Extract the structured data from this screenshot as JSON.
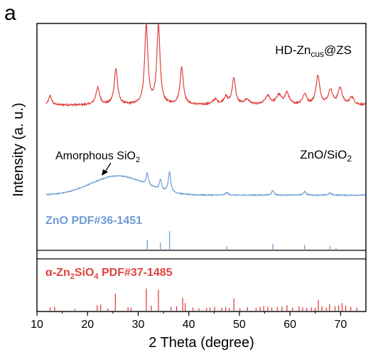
{
  "panel_label": "a",
  "chart_data": {
    "type": "line",
    "xlabel": "2 Theta (degree)",
    "ylabel": "Intensity (a. u.)",
    "xlim": [
      10,
      75
    ],
    "xticks": [
      10,
      20,
      30,
      40,
      50,
      60,
      70
    ],
    "grid": false,
    "series": [
      {
        "name": "HD-Zn_cus@ZS",
        "label_main": "HD-Zn",
        "label_sub": "cus",
        "label_tail": "@ZS",
        "color": "#e0423f",
        "baseline": 0.1,
        "noise": 0.035,
        "peaks": [
          [
            12.6,
            0.18,
            0.35
          ],
          [
            22.0,
            0.33,
            0.45
          ],
          [
            25.6,
            0.7,
            0.4
          ],
          [
            31.6,
            1.55,
            0.38
          ],
          [
            34.0,
            1.53,
            0.38
          ],
          [
            38.6,
            0.72,
            0.4
          ],
          [
            45.2,
            0.1,
            0.6
          ],
          [
            47.3,
            0.14,
            0.5
          ],
          [
            48.9,
            0.52,
            0.4
          ],
          [
            51.5,
            0.1,
            0.6
          ],
          [
            55.6,
            0.17,
            0.6
          ],
          [
            57.8,
            0.18,
            0.6
          ],
          [
            59.4,
            0.22,
            0.5
          ],
          [
            62.9,
            0.2,
            0.5
          ],
          [
            65.5,
            0.56,
            0.45
          ],
          [
            68.0,
            0.28,
            0.5
          ],
          [
            69.9,
            0.32,
            0.5
          ],
          [
            72.2,
            0.15,
            0.5
          ]
        ]
      },
      {
        "name": "ZnO/SiO2",
        "label_main": "ZnO/SiO",
        "label_sub": "2",
        "color": "#6f9bd6",
        "baseline": 0.05,
        "hump": {
          "center": 26,
          "width": 7.5,
          "height": 0.52
        },
        "noise": 0.025,
        "peaks": [
          [
            31.8,
            0.32,
            0.25
          ],
          [
            34.4,
            0.27,
            0.25
          ],
          [
            36.2,
            0.55,
            0.28
          ],
          [
            47.5,
            0.07,
            0.3
          ],
          [
            56.6,
            0.12,
            0.3
          ],
          [
            62.9,
            0.1,
            0.3
          ],
          [
            67.9,
            0.06,
            0.3
          ]
        ]
      }
    ],
    "annotations": [
      {
        "text_main": "Amorphous SiO",
        "text_sub": "2",
        "target_x": 26
      }
    ],
    "references": [
      {
        "name": "ZnO PDF#36-1451",
        "label_prefix": "ZnO PDF#36-1451",
        "color": "#6f9bd6",
        "lines": [
          [
            31.8,
            0.55
          ],
          [
            34.4,
            0.4
          ],
          [
            36.2,
            1.0
          ],
          [
            47.5,
            0.22
          ],
          [
            56.6,
            0.32
          ],
          [
            62.9,
            0.28
          ],
          [
            66.4,
            0.05
          ],
          [
            67.9,
            0.23
          ],
          [
            69.1,
            0.12
          ],
          [
            72.6,
            0.03
          ]
        ]
      },
      {
        "name": "α-Zn2SiO4 PDF#37-1485",
        "label_prefix": "α-Zn",
        "label_sub1": "2",
        "label_mid": "SiO",
        "label_sub2": "4",
        "label_tail": " PDF#37-1485",
        "color": "#e0423f",
        "lines": [
          [
            12.6,
            0.14
          ],
          [
            13.5,
            0.15
          ],
          [
            17.5,
            0.08
          ],
          [
            21.9,
            0.22
          ],
          [
            22.6,
            0.25
          ],
          [
            24.0,
            0.1
          ],
          [
            25.5,
            0.66
          ],
          [
            28.0,
            0.14
          ],
          [
            28.6,
            0.12
          ],
          [
            31.6,
            0.87
          ],
          [
            32.6,
            0.2
          ],
          [
            34.0,
            0.82
          ],
          [
            36.5,
            0.16
          ],
          [
            37.6,
            0.18
          ],
          [
            38.8,
            0.5
          ],
          [
            39.3,
            0.3
          ],
          [
            40.8,
            0.13
          ],
          [
            42.0,
            0.1
          ],
          [
            43.5,
            0.12
          ],
          [
            44.2,
            0.14
          ],
          [
            45.1,
            0.15
          ],
          [
            46.5,
            0.12
          ],
          [
            47.3,
            0.15
          ],
          [
            48.0,
            0.12
          ],
          [
            48.9,
            0.48
          ],
          [
            50.1,
            0.1
          ],
          [
            51.6,
            0.14
          ],
          [
            53.3,
            0.12
          ],
          [
            54.1,
            0.16
          ],
          [
            54.8,
            0.18
          ],
          [
            55.6,
            0.16
          ],
          [
            56.4,
            0.12
          ],
          [
            57.5,
            0.14
          ],
          [
            58.4,
            0.16
          ],
          [
            59.4,
            0.22
          ],
          [
            60.5,
            0.12
          ],
          [
            61.8,
            0.18
          ],
          [
            62.5,
            0.14
          ],
          [
            63.3,
            0.12
          ],
          [
            64.2,
            0.14
          ],
          [
            65.0,
            0.12
          ],
          [
            65.6,
            0.42
          ],
          [
            66.3,
            0.18
          ],
          [
            67.2,
            0.12
          ],
          [
            67.8,
            0.26
          ],
          [
            68.9,
            0.18
          ],
          [
            69.6,
            0.22
          ],
          [
            70.3,
            0.3
          ],
          [
            71.0,
            0.2
          ],
          [
            72.0,
            0.15
          ],
          [
            73.2,
            0.12
          ]
        ]
      }
    ]
  }
}
